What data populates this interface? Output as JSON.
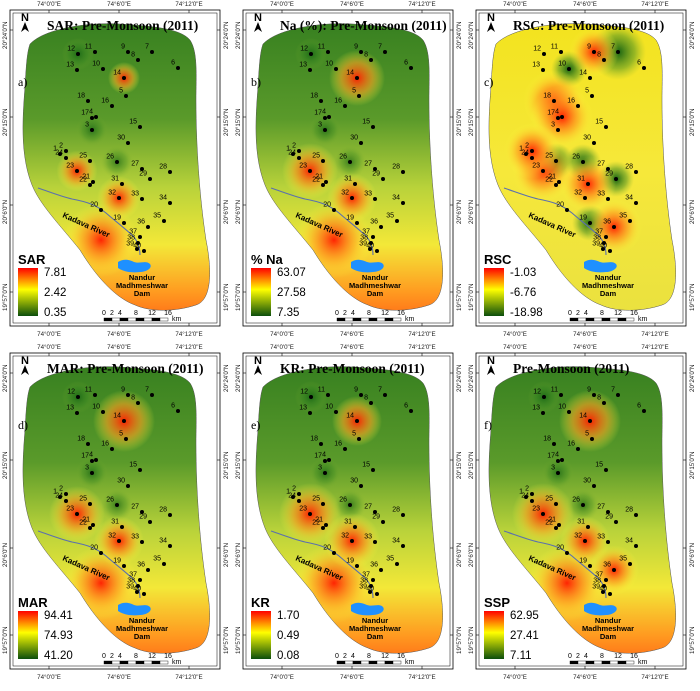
{
  "panels": [
    {
      "id": "sar",
      "title": "SAR: Pre-Monsoon (2011)",
      "letter": "a)",
      "legend_title": "SAR",
      "legend_values": [
        "7.81",
        "2.42",
        "0.35"
      ],
      "style": "high-south",
      "hot": [
        [
          20,
          0.9
        ],
        [
          32,
          0.4
        ],
        [
          23,
          0.35
        ],
        [
          14,
          0.2
        ]
      ]
    },
    {
      "id": "na",
      "title": "Na (%): Pre-Monsoon (2011)",
      "letter": "b)",
      "legend_title": "% Na",
      "legend_values": [
        "63.07",
        "27.58",
        "7.35"
      ],
      "style": "high-south",
      "hot": [
        [
          20,
          0.95
        ],
        [
          14,
          0.6
        ],
        [
          23,
          0.6
        ],
        [
          32,
          0.5
        ]
      ]
    },
    {
      "id": "rsc",
      "title": "RSC: Pre-Monsoon (2011)",
      "letter": "c)",
      "legend_title": "RSC",
      "legend_values": [
        "-1.03",
        "-6.76",
        "-18.98"
      ],
      "style": "mixed",
      "hot": [
        [
          18,
          0.7
        ],
        [
          4,
          0.7
        ],
        [
          23,
          0.7
        ],
        [
          31,
          0.6
        ],
        [
          36,
          0.6
        ],
        [
          2,
          0.6
        ],
        [
          9,
          0.5
        ]
      ]
    },
    {
      "id": "mar",
      "title": "MAR: Pre-Monsoon (2011)",
      "letter": "d)",
      "legend_title": "MAR",
      "legend_values": [
        "94.41",
        "74.93",
        "41.20"
      ],
      "style": "high-south",
      "hot": [
        [
          14,
          0.7
        ],
        [
          20,
          0.9
        ],
        [
          23,
          0.6
        ],
        [
          32,
          0.5
        ]
      ]
    },
    {
      "id": "kr",
      "title": "KR: Pre-Monsoon (2011)",
      "letter": "e)",
      "legend_title": "KR",
      "legend_values": [
        "1.70",
        "0.49",
        "0.08"
      ],
      "style": "high-south",
      "hot": [
        [
          14,
          0.5
        ],
        [
          20,
          1.0
        ],
        [
          23,
          0.7
        ],
        [
          32,
          0.6
        ]
      ]
    },
    {
      "id": "ssp",
      "title": "Pre-Monsoon (2011)",
      "letter": "f)",
      "legend_title": "SSP",
      "legend_values": [
        "62.95",
        "27.41",
        "7.11"
      ],
      "style": "high-south",
      "hot": [
        [
          14,
          0.7
        ],
        [
          20,
          0.95
        ],
        [
          23,
          0.7
        ],
        [
          32,
          0.5
        ],
        [
          36,
          0.5
        ]
      ]
    }
  ],
  "map_labels": {
    "north": "N",
    "river": "Kadava River",
    "dam_line1": "Nandur",
    "dam_line2": "Madhmeshwar",
    "dam_line3": "Dam",
    "scale_ticks": [
      "0",
      "2",
      "4",
      "8",
      "12",
      "16"
    ],
    "scale_unit": "km",
    "lon_ticks": [
      "74°0'0\"E",
      "74°6'0\"E",
      "74°12'0\"E"
    ],
    "lat_ticks": [
      "20°24'0\"N",
      "20°15'0\"N",
      "20°6'0\"N",
      "19°57'0\"N"
    ]
  },
  "wells": [
    "1",
    "2",
    "3",
    "4",
    "5",
    "6",
    "7",
    "8",
    "9",
    "10",
    "11",
    "12",
    "13",
    "14",
    "15",
    "16",
    "17",
    "18",
    "19",
    "20",
    "21",
    "22",
    "23",
    "24",
    "25",
    "26",
    "27",
    "28",
    "29",
    "30",
    "31",
    "32",
    "33",
    "34",
    "35",
    "36",
    "37",
    "38",
    "39",
    "40"
  ],
  "colors": {
    "high": "#ff1a00",
    "mid": "#ffff33",
    "low": "#0a5a10",
    "water": "#1e90ff",
    "river": "#5b6fae"
  }
}
